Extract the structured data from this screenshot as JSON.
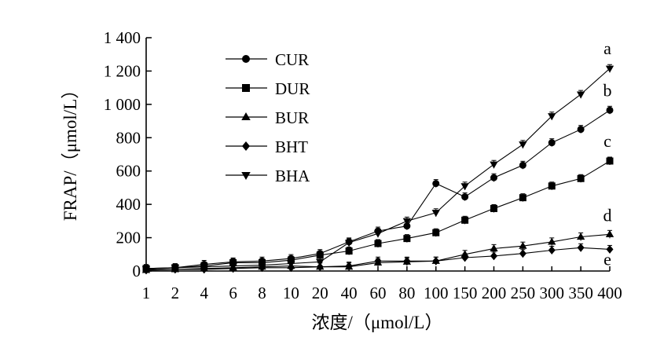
{
  "chart_data": {
    "type": "line",
    "xlabel": "浓度/（μmol/L）",
    "ylabel": "FRAP/（μmol/L）",
    "ylim": [
      0,
      1400
    ],
    "yticks": [
      0,
      200,
      400,
      600,
      800,
      1000,
      1200,
      1400
    ],
    "ytick_labels": [
      "0",
      "200",
      "400",
      "600",
      "800",
      "1 000",
      "1 200",
      "1 400"
    ],
    "categories": [
      "1",
      "2",
      "4",
      "6",
      "8",
      "10",
      "20",
      "40",
      "60",
      "80",
      "100",
      "150",
      "200",
      "250",
      "300",
      "350",
      "400"
    ],
    "legend_position": "top-left",
    "grid": false,
    "series": [
      {
        "name": "CUR",
        "marker": "circle",
        "letter": "b",
        "values": [
          15,
          20,
          40,
          55,
          60,
          75,
          105,
          175,
          240,
          270,
          525,
          445,
          560,
          635,
          770,
          850,
          965
        ]
      },
      {
        "name": "DUR",
        "marker": "square",
        "letter": "c",
        "values": [
          15,
          20,
          30,
          50,
          50,
          65,
          95,
          120,
          165,
          195,
          230,
          305,
          375,
          440,
          510,
          555,
          660
        ]
      },
      {
        "name": "BUR",
        "marker": "triangle-up",
        "letter": "d",
        "values": [
          5,
          10,
          15,
          20,
          25,
          30,
          25,
          25,
          50,
          55,
          60,
          100,
          135,
          150,
          175,
          205,
          220
        ]
      },
      {
        "name": "BHT",
        "marker": "diamond",
        "letter": "e",
        "values": [
          5,
          10,
          10,
          15,
          20,
          20,
          25,
          30,
          60,
          60,
          60,
          80,
          90,
          105,
          125,
          140,
          130
        ]
      },
      {
        "name": "BHA",
        "marker": "triangle-down",
        "letter": "a",
        "values": [
          10,
          20,
          25,
          30,
          35,
          45,
          55,
          170,
          225,
          300,
          350,
          510,
          640,
          760,
          930,
          1060,
          1215
        ]
      }
    ]
  }
}
